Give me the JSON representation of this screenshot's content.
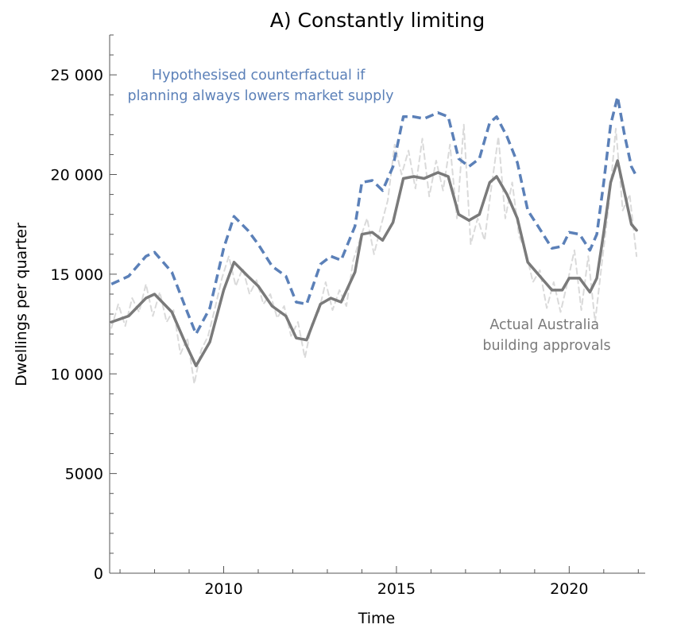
{
  "chart_data": {
    "type": "line",
    "title": "A) Constantly limiting",
    "xlabel": "Time",
    "ylabel": "Dwellings per quarter",
    "xlim": [
      2006.7,
      2022.2
    ],
    "ylim": [
      0,
      27000
    ],
    "x_ticks": [
      {
        "value": 2010,
        "label": "2010"
      },
      {
        "value": 2015,
        "label": "2015"
      },
      {
        "value": 2020,
        "label": "2020"
      }
    ],
    "y_ticks": [
      {
        "value": 0,
        "label": "0"
      },
      {
        "value": 5000,
        "label": "5000"
      },
      {
        "value": 10000,
        "label": "10 000"
      },
      {
        "value": 15000,
        "label": "15 000"
      },
      {
        "value": 20000,
        "label": "20 000"
      },
      {
        "value": 25000,
        "label": "25 000"
      }
    ],
    "grid": false,
    "colors": {
      "counterfactual": "#5b80b8",
      "smoothed": "#7a7a7a",
      "raw": "#dadada"
    },
    "annotations": [
      {
        "series": "counterfactual",
        "lines": [
          "Hypothesised counterfactual if",
          "planning always lowers market supply"
        ]
      },
      {
        "series": "smoothed",
        "lines": [
          "Actual Australia",
          "building approvals"
        ]
      }
    ],
    "series": [
      {
        "id": "counterfactual",
        "style": "dashed",
        "x": [
          2006.75,
          2007.25,
          2007.75,
          2008.0,
          2008.5,
          2008.9,
          2009.2,
          2009.6,
          2010.0,
          2010.3,
          2010.7,
          2011.0,
          2011.4,
          2011.8,
          2012.1,
          2012.4,
          2012.8,
          2013.1,
          2013.4,
          2013.8,
          2014.0,
          2014.3,
          2014.6,
          2014.9,
          2015.2,
          2015.5,
          2015.8,
          2016.2,
          2016.5,
          2016.8,
          2017.1,
          2017.4,
          2017.7,
          2017.9,
          2018.2,
          2018.5,
          2018.8,
          2019.1,
          2019.5,
          2019.8,
          2020.0,
          2020.3,
          2020.6,
          2020.8,
          2021.0,
          2021.2,
          2021.4,
          2021.6,
          2021.8,
          2021.95
        ],
        "y": [
          14500,
          14900,
          15900,
          16100,
          15100,
          13300,
          12000,
          13300,
          16300,
          17900,
          17200,
          16500,
          15400,
          14900,
          13600,
          13500,
          15500,
          15900,
          15700,
          17400,
          19600,
          19700,
          19200,
          20400,
          22900,
          22900,
          22800,
          23100,
          22900,
          20800,
          20400,
          20800,
          22600,
          22900,
          21900,
          20600,
          18200,
          17400,
          16300,
          16400,
          17100,
          17000,
          16200,
          17000,
          19600,
          22500,
          23900,
          22000,
          20400,
          19900
        ]
      },
      {
        "id": "smoothed",
        "style": "solid",
        "x": [
          2006.75,
          2007.25,
          2007.75,
          2008.0,
          2008.5,
          2008.9,
          2009.2,
          2009.6,
          2010.0,
          2010.3,
          2010.7,
          2011.0,
          2011.4,
          2011.8,
          2012.1,
          2012.4,
          2012.8,
          2013.1,
          2013.4,
          2013.8,
          2014.0,
          2014.3,
          2014.6,
          2014.9,
          2015.2,
          2015.5,
          2015.8,
          2016.2,
          2016.5,
          2016.8,
          2017.1,
          2017.4,
          2017.7,
          2017.9,
          2018.2,
          2018.5,
          2018.8,
          2019.1,
          2019.5,
          2019.8,
          2020.0,
          2020.3,
          2020.6,
          2020.8,
          2021.0,
          2021.2,
          2021.4,
          2021.6,
          2021.8,
          2021.95
        ],
        "y": [
          12600,
          12900,
          13800,
          14000,
          13100,
          11500,
          10400,
          11600,
          14200,
          15600,
          14900,
          14400,
          13400,
          12900,
          11800,
          11700,
          13500,
          13800,
          13600,
          15100,
          17000,
          17100,
          16700,
          17600,
          19800,
          19900,
          19800,
          20100,
          19900,
          18000,
          17700,
          18000,
          19600,
          19900,
          19000,
          17800,
          15600,
          15000,
          14200,
          14200,
          14800,
          14800,
          14100,
          14800,
          17100,
          19600,
          20700,
          19100,
          17500,
          17200
        ]
      },
      {
        "id": "raw",
        "style": "dashed",
        "x": [
          2006.75,
          2006.95,
          2007.15,
          2007.35,
          2007.55,
          2007.75,
          2007.95,
          2008.15,
          2008.35,
          2008.55,
          2008.75,
          2008.95,
          2009.15,
          2009.35,
          2009.55,
          2009.75,
          2009.95,
          2010.15,
          2010.35,
          2010.55,
          2010.75,
          2010.95,
          2011.15,
          2011.35,
          2011.55,
          2011.75,
          2011.95,
          2012.15,
          2012.35,
          2012.55,
          2012.75,
          2012.95,
          2013.15,
          2013.35,
          2013.55,
          2013.75,
          2013.95,
          2014.15,
          2014.35,
          2014.55,
          2014.75,
          2014.95,
          2015.15,
          2015.35,
          2015.55,
          2015.75,
          2015.95,
          2016.15,
          2016.35,
          2016.55,
          2016.75,
          2016.95,
          2017.15,
          2017.35,
          2017.55,
          2017.75,
          2017.95,
          2018.15,
          2018.35,
          2018.55,
          2018.75,
          2018.95,
          2019.15,
          2019.35,
          2019.55,
          2019.75,
          2019.95,
          2020.15,
          2020.35,
          2020.55,
          2020.75,
          2020.95,
          2021.15,
          2021.35,
          2021.55,
          2021.75,
          2021.95
        ],
        "y": [
          12300,
          13500,
          12400,
          13800,
          13100,
          14500,
          12900,
          14100,
          12600,
          13200,
          11000,
          11800,
          9500,
          11200,
          11900,
          13300,
          14800,
          15900,
          14400,
          15300,
          14000,
          14700,
          13500,
          14000,
          12800,
          13400,
          11900,
          12600,
          10800,
          12500,
          13100,
          14600,
          13200,
          14200,
          13400,
          15700,
          16800,
          17800,
          16000,
          17400,
          18700,
          21500,
          20000,
          21200,
          19300,
          21800,
          18900,
          20700,
          19200,
          21500,
          17800,
          22500,
          16500,
          17800,
          16700,
          19400,
          21900,
          17800,
          19600,
          16900,
          16100,
          14600,
          15200,
          13300,
          14600,
          13100,
          14600,
          16200,
          13200,
          15900,
          12600,
          15600,
          18500,
          22300,
          18200,
          19000,
          15900
        ]
      }
    ]
  }
}
